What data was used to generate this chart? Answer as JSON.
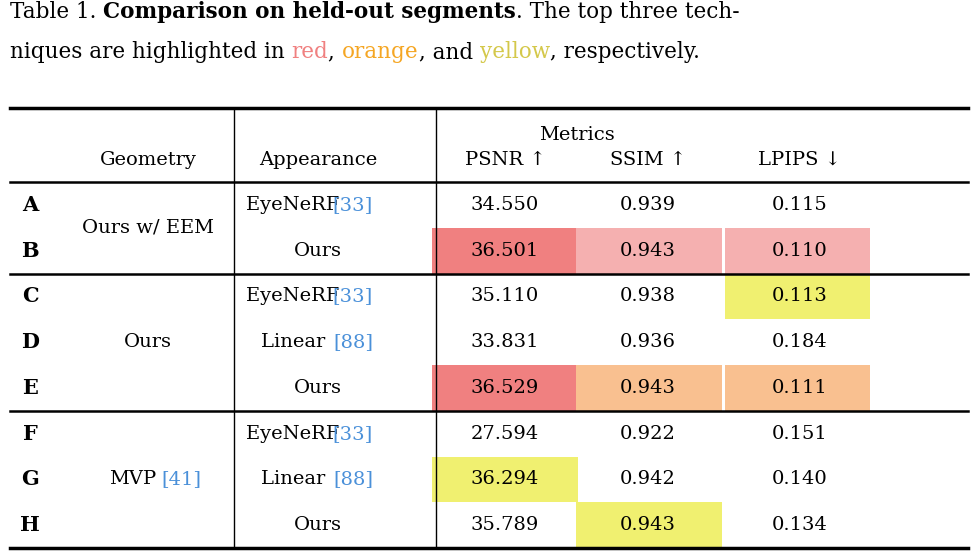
{
  "background": "#ffffff",
  "ref_color": "#4a90d9",
  "red_color": "#f08080",
  "orange_color": "#f5a623",
  "yellow_color": "#d4c84a",
  "font_size": 14,
  "title_font_size": 15.5,
  "rows": [
    {
      "id": "A",
      "geometry": "Ours w/ EEM",
      "appearance": "EyeNeRF [33]",
      "psnr": "34.550",
      "ssim": "0.939",
      "lpips": "0.115",
      "psnr_bg": null,
      "ssim_bg": null,
      "lpips_bg": null
    },
    {
      "id": "B",
      "geometry": null,
      "appearance": "Ours",
      "psnr": "36.501",
      "ssim": "0.943",
      "lpips": "0.110",
      "psnr_bg": "#f08080",
      "ssim_bg": "#f5b0b0",
      "lpips_bg": "#f5b0b0"
    },
    {
      "id": "C",
      "geometry": "Ours",
      "appearance": "EyeNeRF [33]",
      "psnr": "35.110",
      "ssim": "0.938",
      "lpips": "0.113",
      "psnr_bg": null,
      "ssim_bg": null,
      "lpips_bg": "#f0f070"
    },
    {
      "id": "D",
      "geometry": null,
      "appearance": "Linear [88]",
      "psnr": "33.831",
      "ssim": "0.936",
      "lpips": "0.184",
      "psnr_bg": null,
      "ssim_bg": null,
      "lpips_bg": null
    },
    {
      "id": "E",
      "geometry": null,
      "appearance": "Ours",
      "psnr": "36.529",
      "ssim": "0.943",
      "lpips": "0.111",
      "psnr_bg": "#f08080",
      "ssim_bg": "#f9c090",
      "lpips_bg": "#f9c090"
    },
    {
      "id": "F",
      "geometry": "MVP [41]",
      "appearance": "EyeNeRF [33]",
      "psnr": "27.594",
      "ssim": "0.922",
      "lpips": "0.151",
      "psnr_bg": null,
      "ssim_bg": null,
      "lpips_bg": null
    },
    {
      "id": "G",
      "geometry": null,
      "appearance": "Linear [88]",
      "psnr": "36.294",
      "ssim": "0.942",
      "lpips": "0.140",
      "psnr_bg": "#f0f070",
      "ssim_bg": null,
      "lpips_bg": null
    },
    {
      "id": "H",
      "geometry": null,
      "appearance": "Ours",
      "psnr": "35.789",
      "ssim": "0.943",
      "lpips": "0.134",
      "psnr_bg": null,
      "ssim_bg": "#f0f070",
      "lpips_bg": null
    }
  ],
  "group_separators_after": [
    1,
    4
  ],
  "geom_group_centers": [
    {
      "rows": [
        0,
        1
      ],
      "label": "Ours w/ EEM",
      "ref": null
    },
    {
      "rows": [
        2,
        3,
        4
      ],
      "label": "Ours",
      "ref": null
    },
    {
      "rows": [
        5,
        6,
        7
      ],
      "label": "MVP",
      "ref": "[41]"
    }
  ]
}
